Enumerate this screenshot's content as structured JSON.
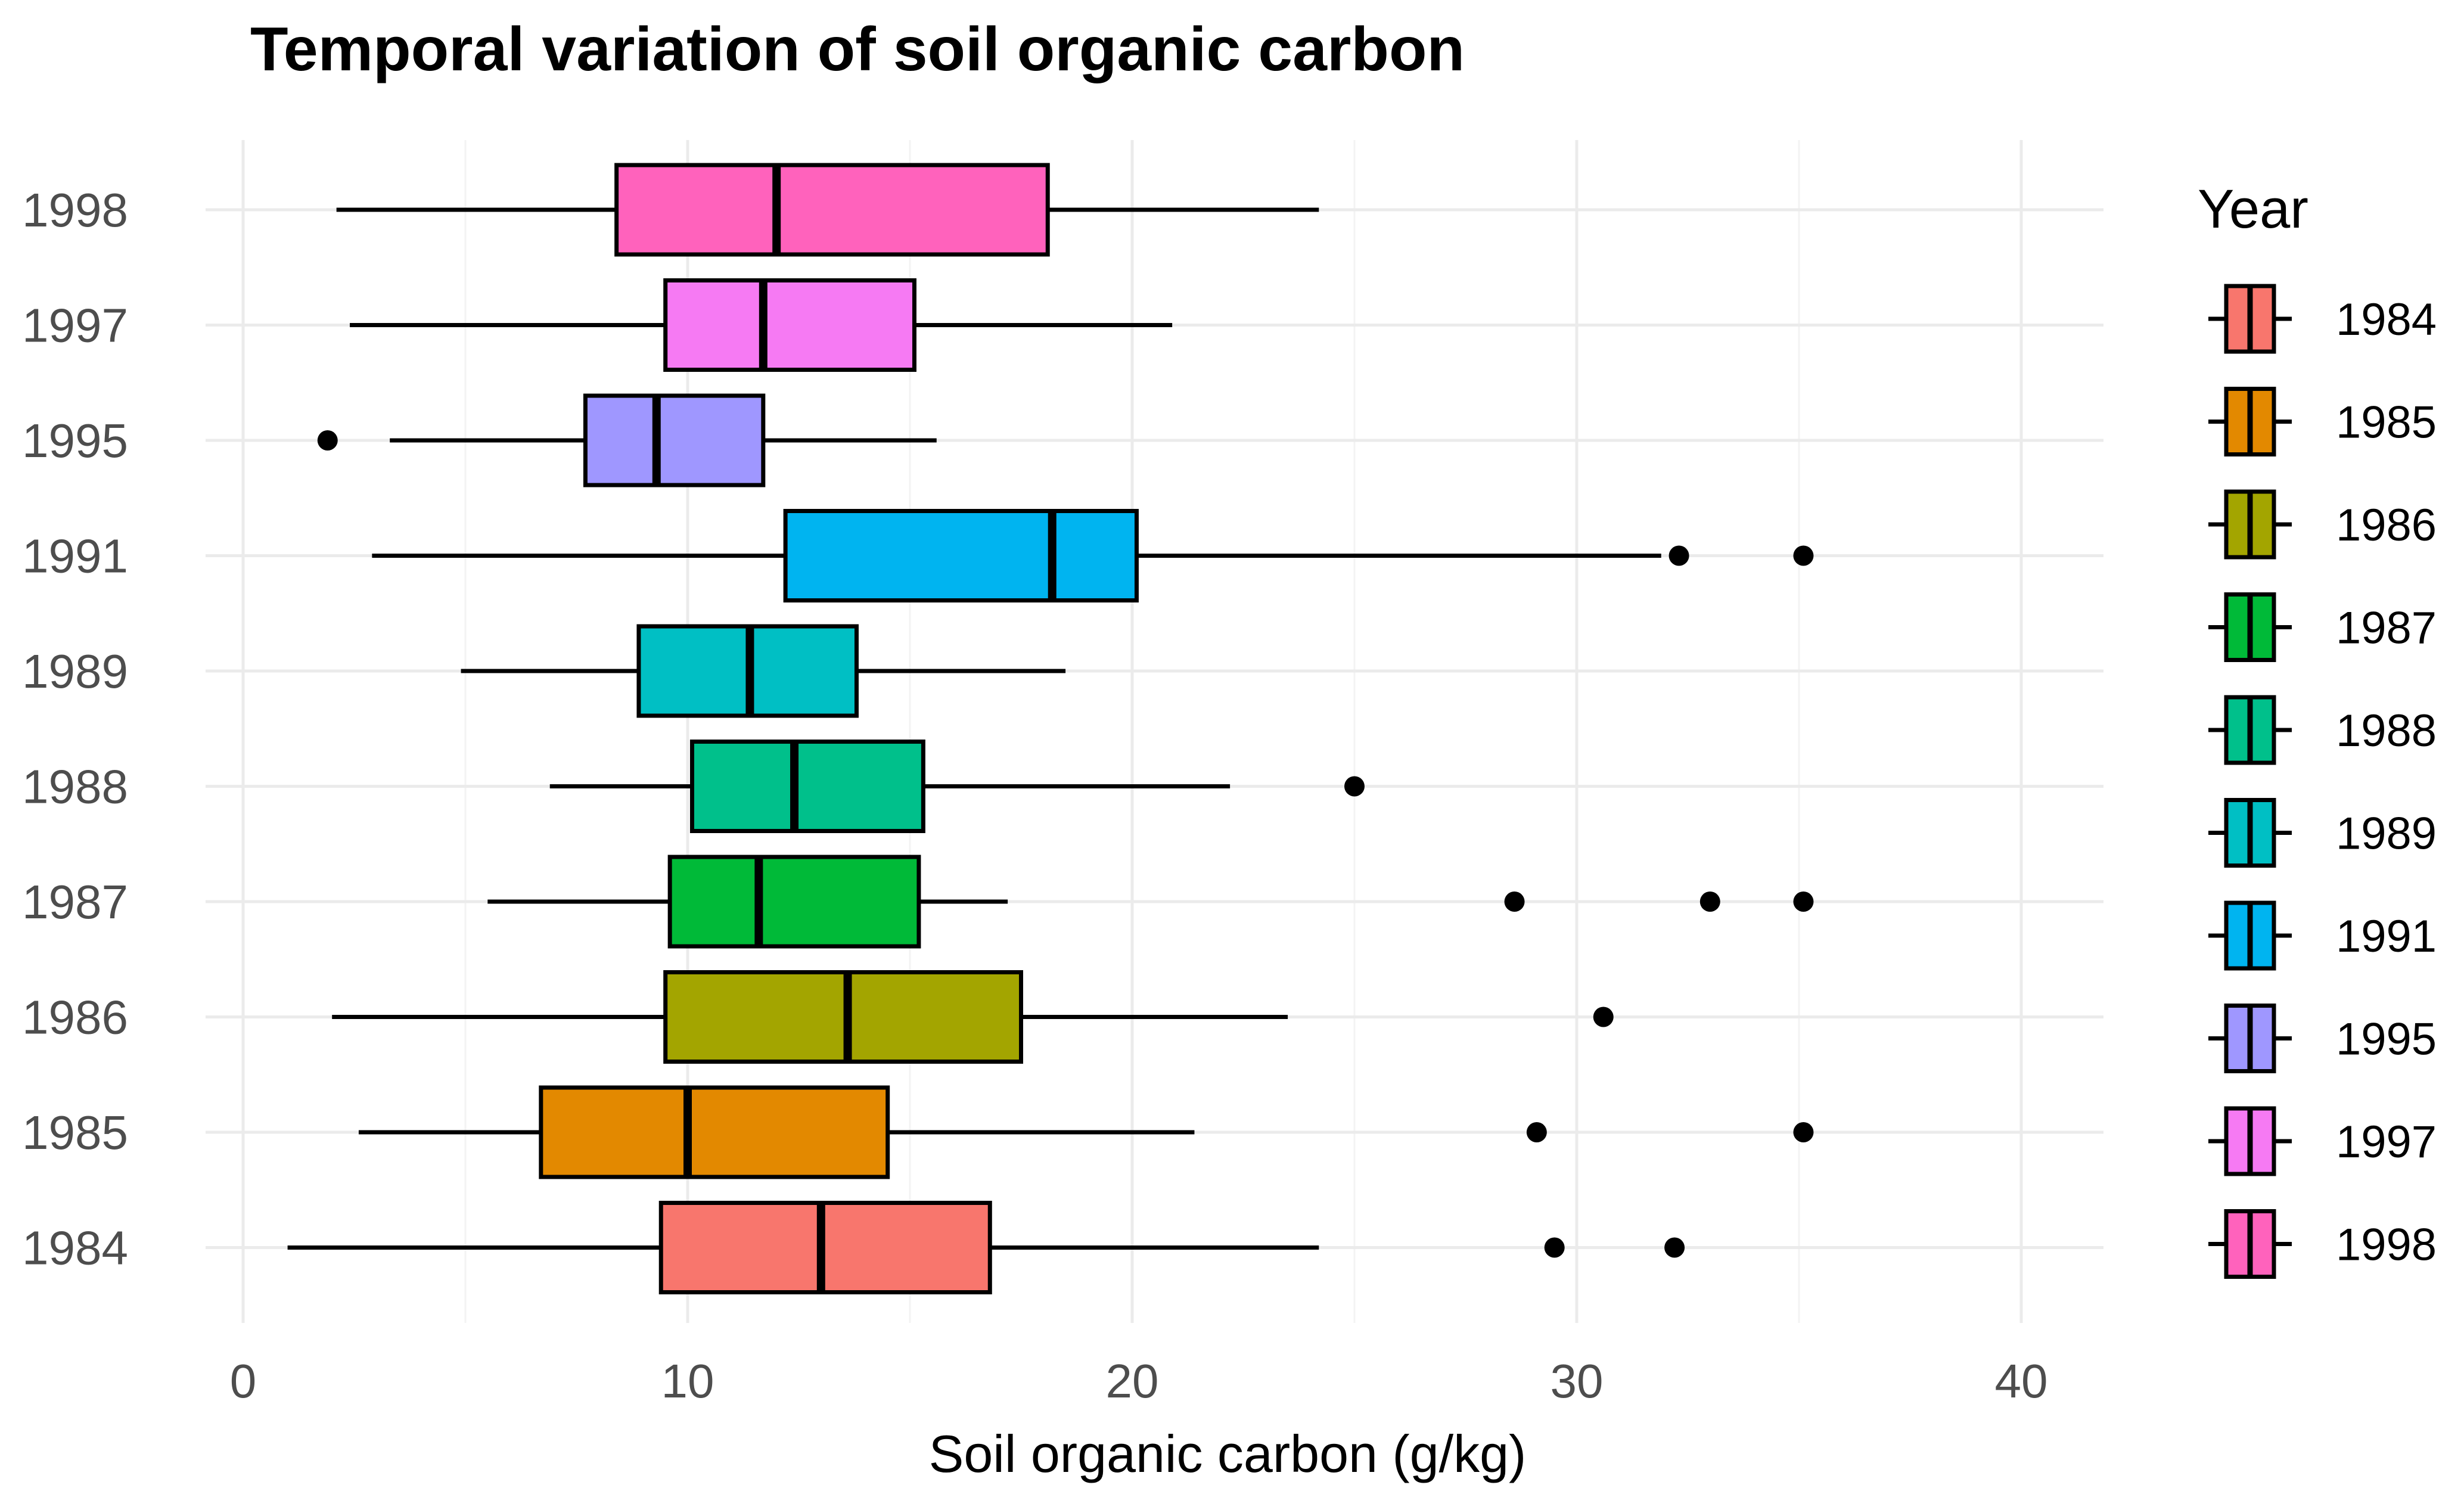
{
  "chart_data": {
    "type": "boxplot",
    "orientation": "horizontal",
    "title": "Temporal variation of soil organic carbon",
    "xlabel": "Soil organic carbon (g/kg)",
    "ylabel": "",
    "xlim": [
      -1.5,
      42
    ],
    "xticks": [
      0,
      10,
      20,
      30,
      40
    ],
    "xtick_labels": [
      "0",
      "10",
      "20",
      "30",
      "40"
    ],
    "grid": true,
    "legend": {
      "title": "Year",
      "placement": "right"
    },
    "series": [
      {
        "name": "1984",
        "color": "#F8766D",
        "whisker_low": 1.0,
        "q1": 9.4,
        "median": 13.0,
        "q3": 16.8,
        "whisker_high": 24.2,
        "outliers": [
          29.5,
          32.2
        ]
      },
      {
        "name": "1985",
        "color": "#E38900",
        "whisker_low": 2.6,
        "q1": 6.7,
        "median": 10.0,
        "q3": 14.5,
        "whisker_high": 21.4,
        "outliers": [
          29.1,
          35.1
        ]
      },
      {
        "name": "1986",
        "color": "#A3A500",
        "whisker_low": 2.0,
        "q1": 9.5,
        "median": 13.6,
        "q3": 17.5,
        "whisker_high": 23.5,
        "outliers": [
          30.6
        ]
      },
      {
        "name": "1987",
        "color": "#00BA38",
        "whisker_low": 5.5,
        "q1": 9.6,
        "median": 11.6,
        "q3": 15.2,
        "whisker_high": 17.2,
        "outliers": [
          28.6,
          33.0,
          35.1
        ]
      },
      {
        "name": "1988",
        "color": "#00C08B",
        "whisker_low": 6.9,
        "q1": 10.1,
        "median": 12.4,
        "q3": 15.3,
        "whisker_high": 22.2,
        "outliers": [
          25.0
        ]
      },
      {
        "name": "1989",
        "color": "#00BFC4",
        "whisker_low": 4.9,
        "q1": 8.9,
        "median": 11.4,
        "q3": 13.8,
        "whisker_high": 18.5,
        "outliers": []
      },
      {
        "name": "1991",
        "color": "#00B4F0",
        "whisker_low": 2.9,
        "q1": 12.2,
        "median": 18.2,
        "q3": 20.1,
        "whisker_high": 31.9,
        "outliers": [
          32.3,
          35.1
        ]
      },
      {
        "name": "1995",
        "color": "#9F97FF",
        "whisker_low": 3.3,
        "q1": 7.7,
        "median": 9.3,
        "q3": 11.7,
        "whisker_high": 15.6,
        "outliers": [
          1.9
        ]
      },
      {
        "name": "1997",
        "color": "#F67AF3",
        "whisker_low": 2.4,
        "q1": 9.5,
        "median": 11.7,
        "q3": 15.1,
        "whisker_high": 20.9,
        "outliers": []
      },
      {
        "name": "1998",
        "color": "#FF62BC",
        "whisker_low": 2.1,
        "q1": 8.4,
        "median": 12.0,
        "q3": 18.1,
        "whisker_high": 24.2,
        "outliers": []
      }
    ]
  }
}
